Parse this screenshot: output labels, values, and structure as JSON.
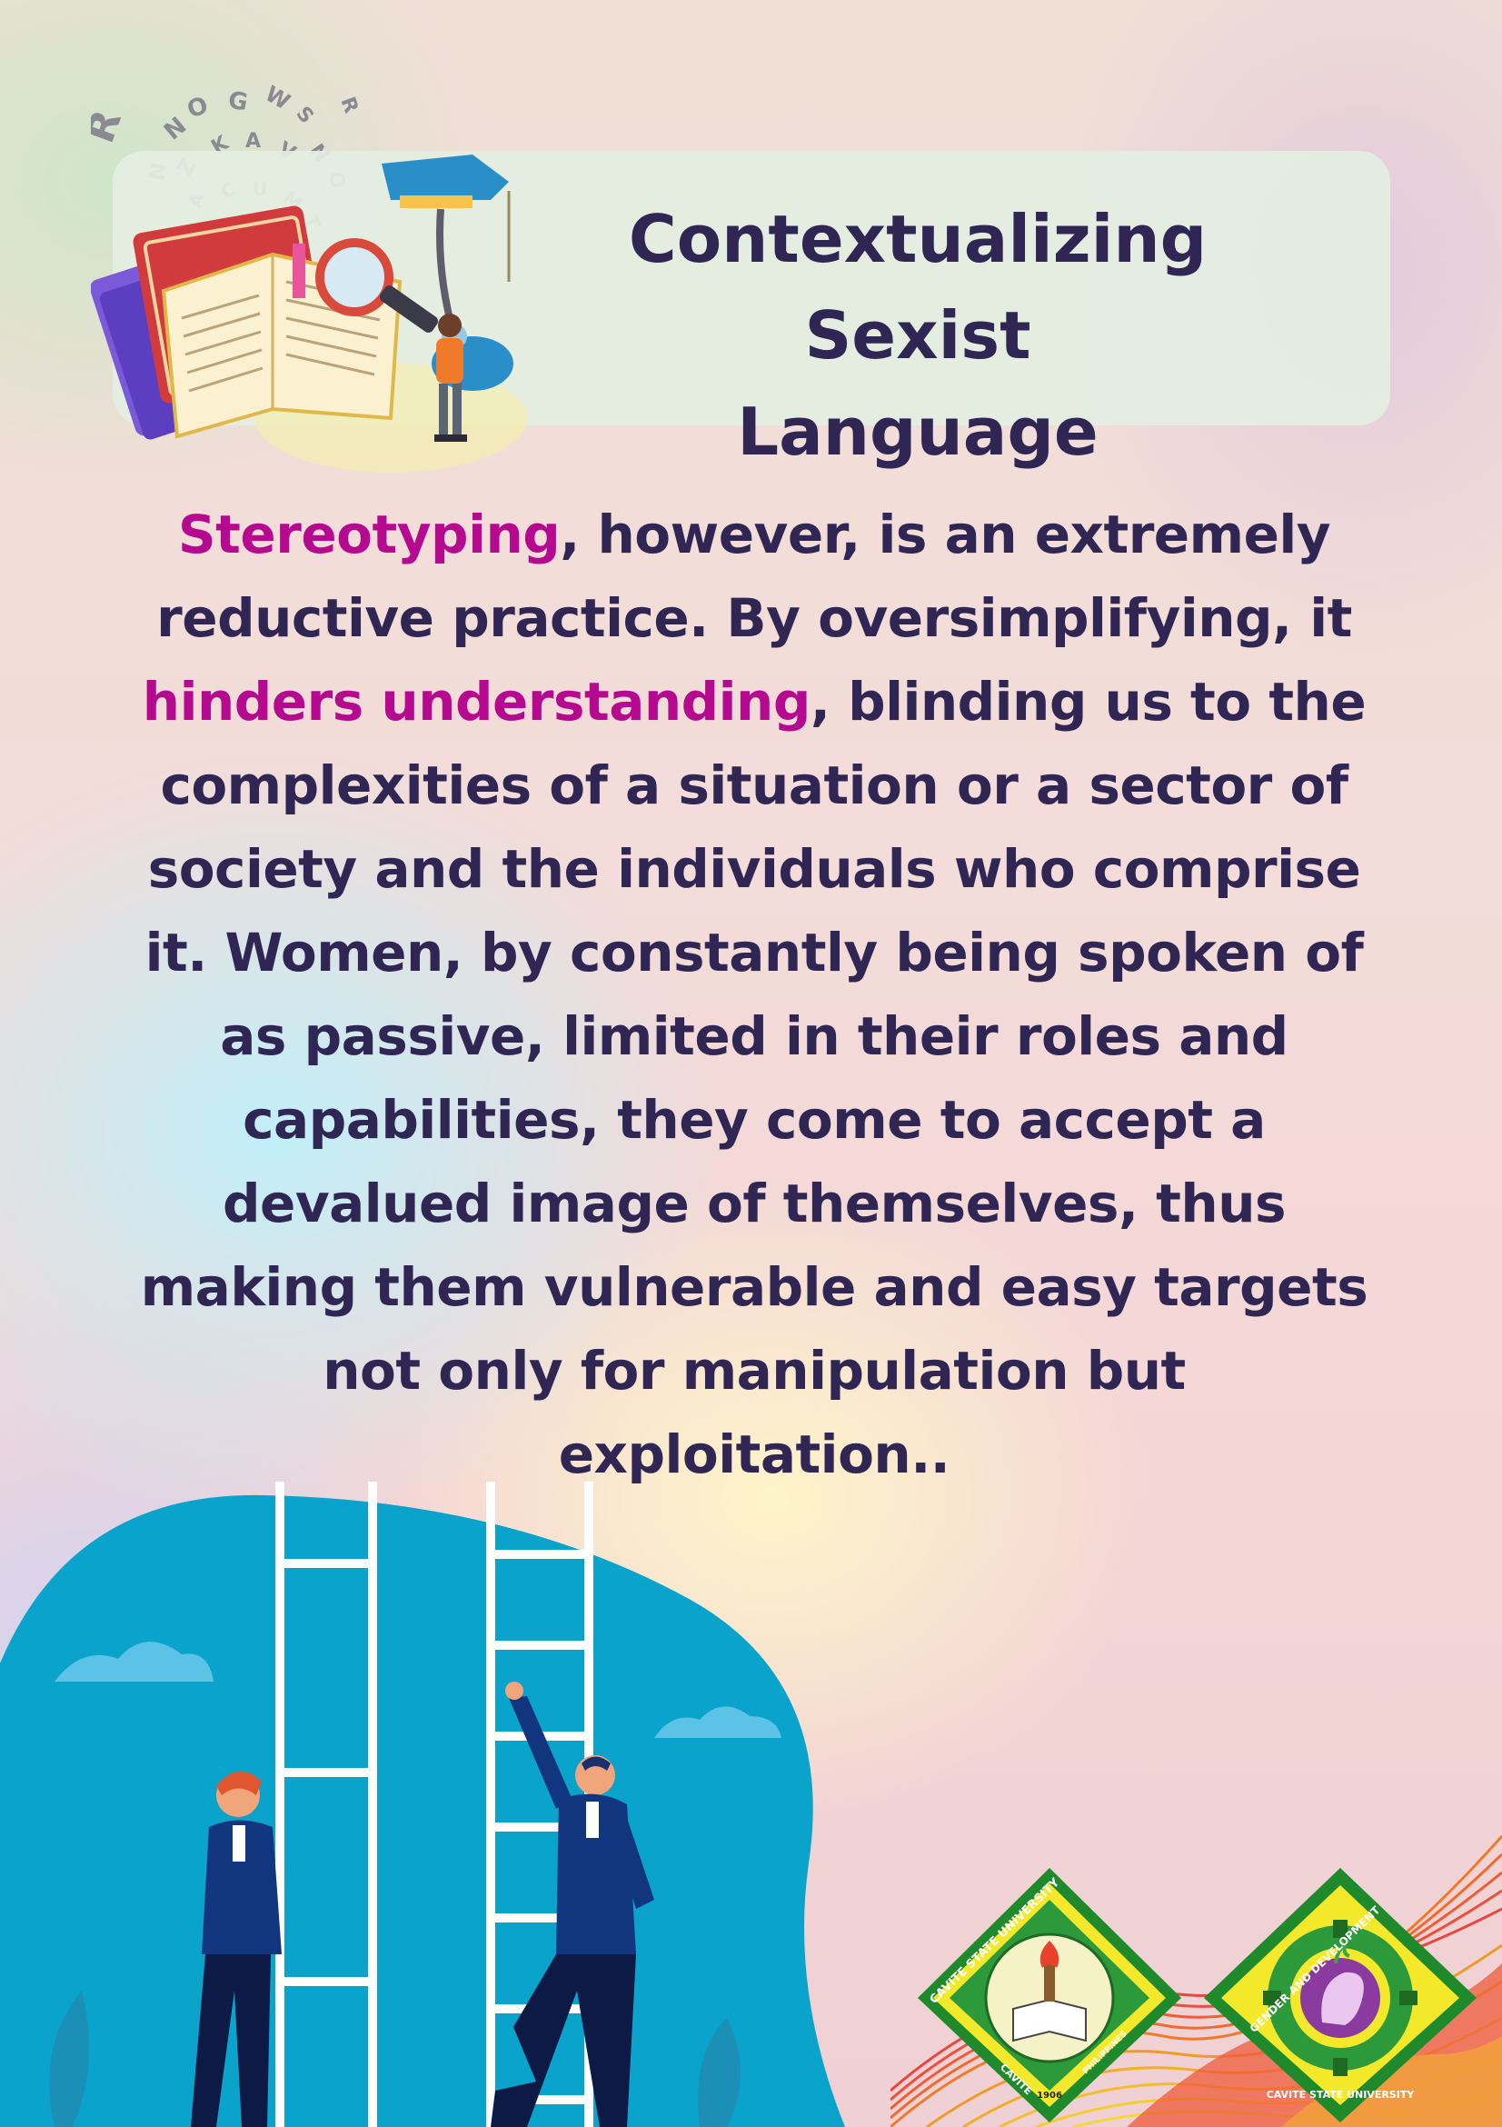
{
  "title": {
    "line1": "Contextualizing Sexist",
    "line2": "Language"
  },
  "letters_swirl": "RNWSGOAKNVUZACTMLSKPSAR",
  "body": {
    "highlight1": "Stereotyping",
    "text1": ", however, is an extremely reductive practice. By oversimplifying, it ",
    "highlight2": "hinders understanding",
    "text2": ", blinding us to the complexities of a situation or a sector of society and the individuals who comprise it. Women, by constantly being spoken of as passive, limited in their roles and capabilities, they come to accept a devalued image of themselves, thus making them vulnerable and easy targets not only for manipulation but exploitation.."
  },
  "logos": {
    "cvsu": {
      "ring_text": "CAVITE STATE UNIVERSITY",
      "bottom_text": "CAVITE",
      "side_text": "PHILIPPINES",
      "year": "1906"
    },
    "gad": {
      "ring_text": "GENDER AND DEVELOPMENT",
      "bottom_text": "CAVITE STATE UNIVERSITY"
    }
  },
  "colors": {
    "accent": "#b50a8f",
    "text": "#2f2654",
    "blob": "#0aa3cc"
  }
}
